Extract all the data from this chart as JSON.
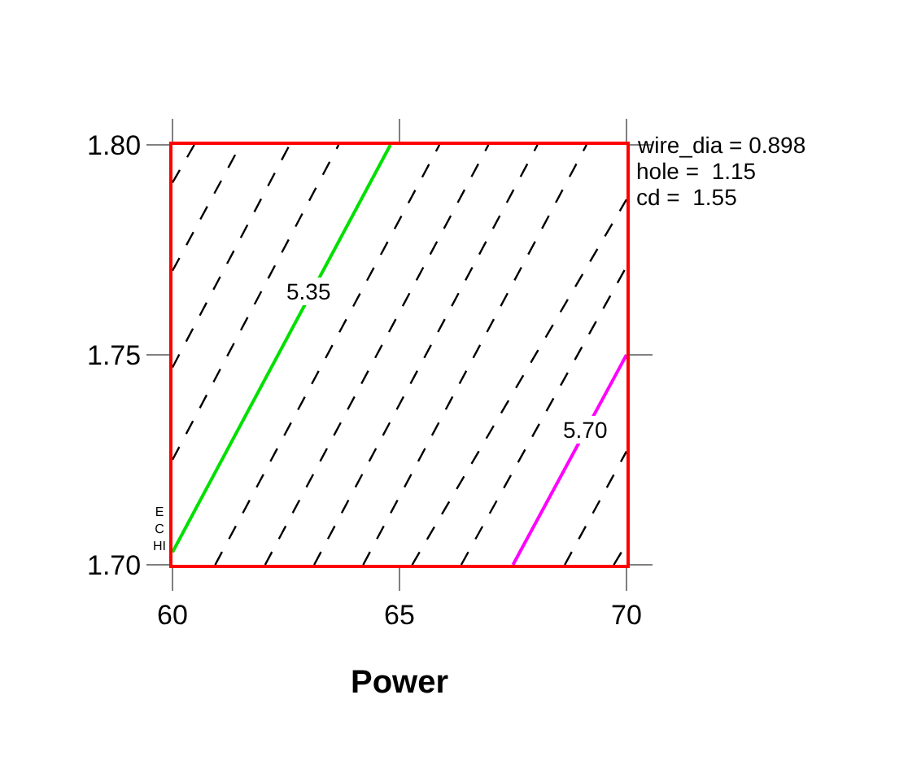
{
  "chart_data": {
    "type": "line",
    "xlabel": "Power",
    "xlim": [
      60,
      70
    ],
    "ylim": [
      1.7,
      1.8
    ],
    "xticks": [
      60,
      65,
      70
    ],
    "yticks": [
      {
        "value": 1.7,
        "label": "1.70"
      },
      1.75,
      {
        "value": 1.8,
        "label": "1.80"
      }
    ],
    "marker": "none",
    "series": [
      {
        "color": "#000000",
        "line_style": "dashed",
        "x": [
          60,
          60.48
        ],
        "values": [
          1.791,
          1.8
        ]
      },
      {
        "color": "#000000",
        "line_style": "dashed",
        "x": [
          60,
          61.5
        ],
        "values": [
          1.77,
          1.8
        ]
      },
      {
        "color": "#000000",
        "line_style": "dashed",
        "x": [
          60,
          62.58
        ],
        "values": [
          1.747,
          1.8
        ]
      },
      {
        "color": "#000000",
        "line_style": "dashed",
        "x": [
          60,
          63.66
        ],
        "values": [
          1.725,
          1.8
        ]
      },
      {
        "color": "#00e000",
        "line_style": "solid",
        "x": [
          60,
          64.8
        ],
        "values": [
          1.703,
          1.8
        ]
      },
      {
        "color": "#000000",
        "line_style": "dashed",
        "x": [
          60.94,
          65.88
        ],
        "values": [
          1.7,
          1.8
        ]
      },
      {
        "color": "#000000",
        "line_style": "dashed",
        "x": [
          62.04,
          66.96
        ],
        "values": [
          1.7,
          1.8
        ]
      },
      {
        "color": "#000000",
        "line_style": "dashed",
        "x": [
          63.12,
          68.04
        ],
        "values": [
          1.7,
          1.8
        ]
      },
      {
        "color": "#000000",
        "line_style": "dashed",
        "x": [
          64.2,
          69.12
        ],
        "values": [
          1.7,
          1.8
        ]
      },
      {
        "color": "#000000",
        "line_style": "dashed",
        "x": [
          65.28,
          70
        ],
        "values": [
          1.7,
          1.787
        ]
      },
      {
        "color": "#000000",
        "line_style": "dashed",
        "x": [
          66.36,
          70
        ],
        "values": [
          1.7,
          1.771
        ]
      },
      {
        "color": "#ff00ff",
        "line_style": "solid",
        "x": [
          67.5,
          70
        ],
        "values": [
          1.7,
          1.75
        ]
      },
      {
        "color": "#000000",
        "line_style": "dashed",
        "x": [
          68.64,
          70
        ],
        "values": [
          1.7,
          1.727
        ]
      },
      {
        "color": "#000000",
        "line_style": "dashed",
        "x": [
          69.72,
          70
        ],
        "values": [
          1.7,
          1.705
        ]
      }
    ],
    "annotations": [
      {
        "text": "5.35",
        "x": 63.0,
        "y": 1.765
      },
      {
        "text": "5.70",
        "x": 69.1,
        "y": 1.732
      },
      "wire_dia = 0.898",
      "hole =  1.15",
      "cd =  1.55",
      "E\nC\nHI"
    ]
  }
}
